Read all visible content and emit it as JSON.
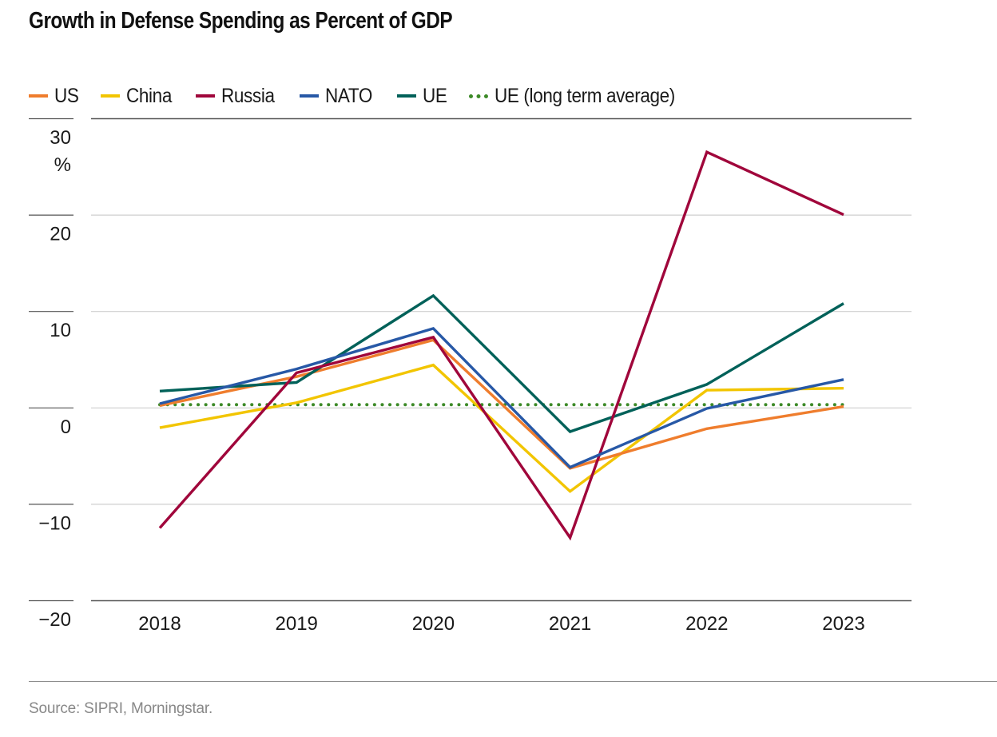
{
  "title": "Growth in Defense Spending as Percent of GDP",
  "source": "Source: SIPRI, Morningstar.",
  "chart_data": {
    "type": "line",
    "title": "Growth in Defense Spending as Percent of GDP",
    "xlabel": "",
    "ylabel": "%",
    "y_unit_label": "%",
    "ylim": [
      -20,
      30
    ],
    "yticks": [
      30,
      20,
      10,
      0,
      -10,
      -20
    ],
    "ytick_labels": [
      "30",
      "20",
      "10",
      "0",
      "−10",
      "−20"
    ],
    "grid": true,
    "legend_position": "top-left",
    "categories": [
      "2018",
      "2019",
      "2020",
      "2021",
      "2022",
      "2023"
    ],
    "series": [
      {
        "key": "us",
        "name": "US",
        "color": "#EF7D2D",
        "style": "solid",
        "values": [
          0.2,
          3.2,
          7.0,
          -6.3,
          -2.2,
          0.1
        ]
      },
      {
        "key": "china",
        "name": "China",
        "color": "#F2C500",
        "style": "solid",
        "values": [
          -2.1,
          0.5,
          4.4,
          -8.7,
          1.8,
          2.0
        ]
      },
      {
        "key": "russia",
        "name": "Russia",
        "color": "#A0063B",
        "style": "solid",
        "values": [
          -12.5,
          3.6,
          7.3,
          -13.5,
          26.5,
          20.0
        ]
      },
      {
        "key": "nato",
        "name": "NATO",
        "color": "#2758A6",
        "style": "solid",
        "values": [
          0.4,
          4.0,
          8.2,
          -6.2,
          -0.1,
          2.9
        ]
      },
      {
        "key": "ue",
        "name": "UE",
        "color": "#006159",
        "style": "solid",
        "values": [
          1.7,
          2.6,
          11.6,
          -2.5,
          2.4,
          10.8
        ]
      },
      {
        "key": "ue_avg",
        "name": "UE (long term average)",
        "color": "#3D8A28",
        "style": "dotted",
        "values": [
          0.3,
          0.3,
          0.3,
          0.3,
          0.3,
          0.3
        ]
      }
    ]
  }
}
